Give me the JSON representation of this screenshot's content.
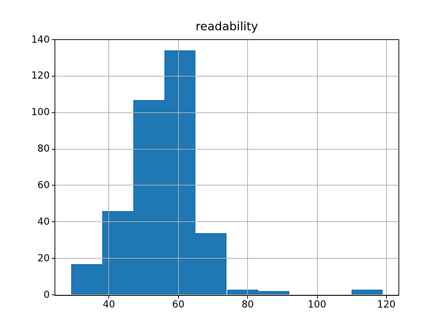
{
  "chart_data": {
    "type": "bar",
    "subtype": "histogram",
    "title": "readability",
    "xlabel": "",
    "ylabel": "",
    "bin_edges": [
      29,
      38,
      47,
      56,
      65,
      74,
      83,
      92,
      101,
      110,
      119
    ],
    "counts": [
      17,
      46,
      107,
      134,
      34,
      3,
      2,
      0,
      0,
      3
    ],
    "xlim": [
      24.5,
      123.5
    ],
    "ylim": [
      0,
      140
    ],
    "xticks": [
      40,
      60,
      80,
      100,
      120
    ],
    "yticks": [
      0,
      20,
      40,
      60,
      80,
      100,
      120,
      140
    ],
    "grid": true,
    "grid_above_bars": true,
    "legend": null,
    "colors": {
      "bar": "#1f77b4",
      "grid": "#b0b0b0",
      "spine": "#000000",
      "text": "#000000",
      "background": "#ffffff"
    }
  }
}
